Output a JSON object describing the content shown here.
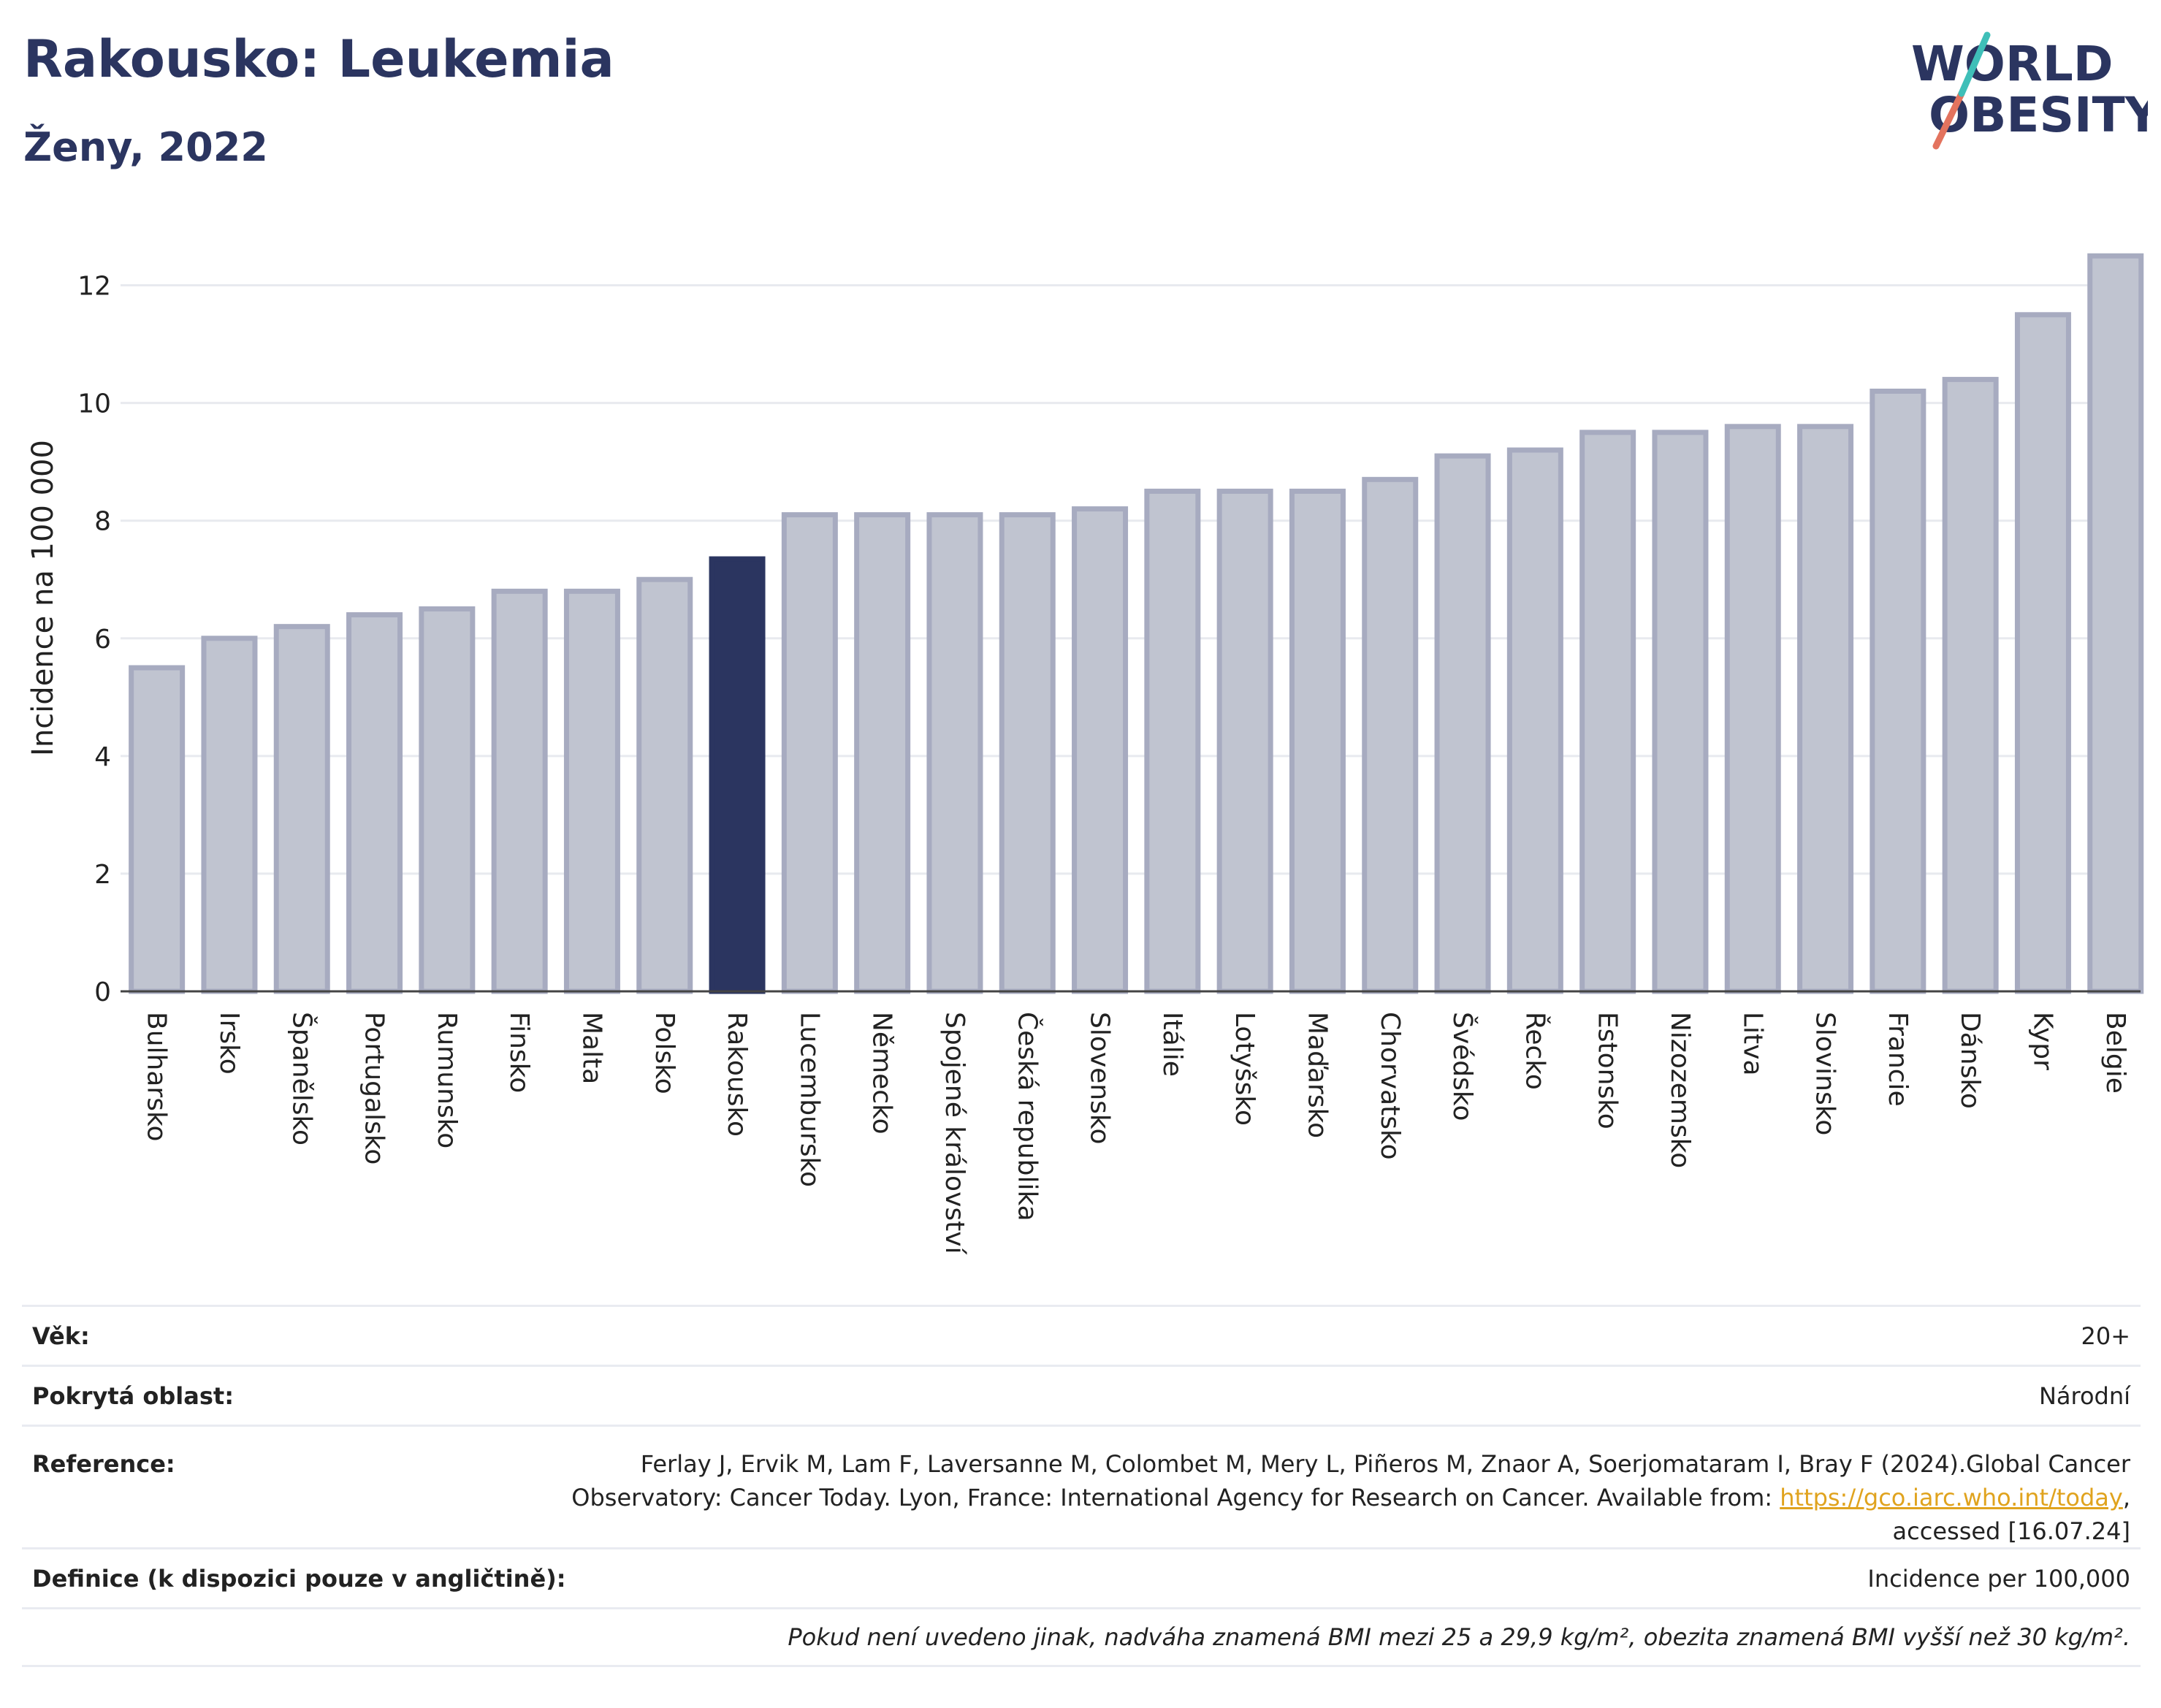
{
  "header": {
    "title": "Rakousko: Leukemia",
    "subtitle": "Ženy, 2022"
  },
  "logo": {
    "line1": "WORLD",
    "line2": "OBESITY"
  },
  "chart_data": {
    "type": "bar",
    "ylabel": "Incidence na 100 000",
    "ylim": [
      0,
      13
    ],
    "yticks": [
      "0",
      "2",
      "4",
      "6",
      "8",
      "10",
      "12"
    ],
    "categories": [
      "Bulharsko",
      "Irsko",
      "Španělsko",
      "Portugalsko",
      "Rumunsko",
      "Finsko",
      "Malta",
      "Polsko",
      "Rakousko",
      "Lucembursko",
      "Německo",
      "Spojené království",
      "Česká republika",
      "Slovensko",
      "Itálie",
      "Lotyšsko",
      "Maďarsko",
      "Chorvatsko",
      "Švédsko",
      "Řecko",
      "Estonsko",
      "Nizozemsko",
      "Litva",
      "Slovinsko",
      "Francie",
      "Dánsko",
      "Kypr",
      "Belgie"
    ],
    "values": [
      5.5,
      6.0,
      6.2,
      6.4,
      6.5,
      6.8,
      6.8,
      7.0,
      7.35,
      8.1,
      8.1,
      8.1,
      8.1,
      8.2,
      8.5,
      8.5,
      8.5,
      8.7,
      9.1,
      9.2,
      9.5,
      9.5,
      9.6,
      9.6,
      10.2,
      10.4,
      11.5,
      12.5
    ],
    "highlight": "Rakousko",
    "colors": {
      "bar": "#c0c4d0",
      "bar_edge": "#a7abc0",
      "highlight": "#2b3560",
      "grid": "#e8eaef"
    },
    "grid": true
  },
  "info": {
    "age_label": "Věk:",
    "age_value": "20+",
    "area_label": "Pokrytá oblast:",
    "area_value": "Národní",
    "ref_label": "Reference:",
    "ref_text_1": "Ferlay J, Ervik M, Lam F, Laversanne M, Colombet M, Mery L, Piñeros M, Znaor A, Soerjomataram I, Bray F (2024).Global Cancer",
    "ref_text_2": "Observatory: Cancer Today. Lyon, France: International Agency for Research on Cancer. Available from: ",
    "ref_link": "https://gco.iarc.who.int/today",
    "ref_text_3": ",",
    "ref_text_4": "accessed [16.07.24]",
    "def_label": "Definice (k dispozici pouze v angličtině):",
    "def_value": "Incidence per 100,000",
    "note": "Pokud není uvedeno jinak, nadváha znamená BMI mezi 25 a 29,9 kg/m², obezita znamená BMI vyšší než 30 kg/m²."
  }
}
